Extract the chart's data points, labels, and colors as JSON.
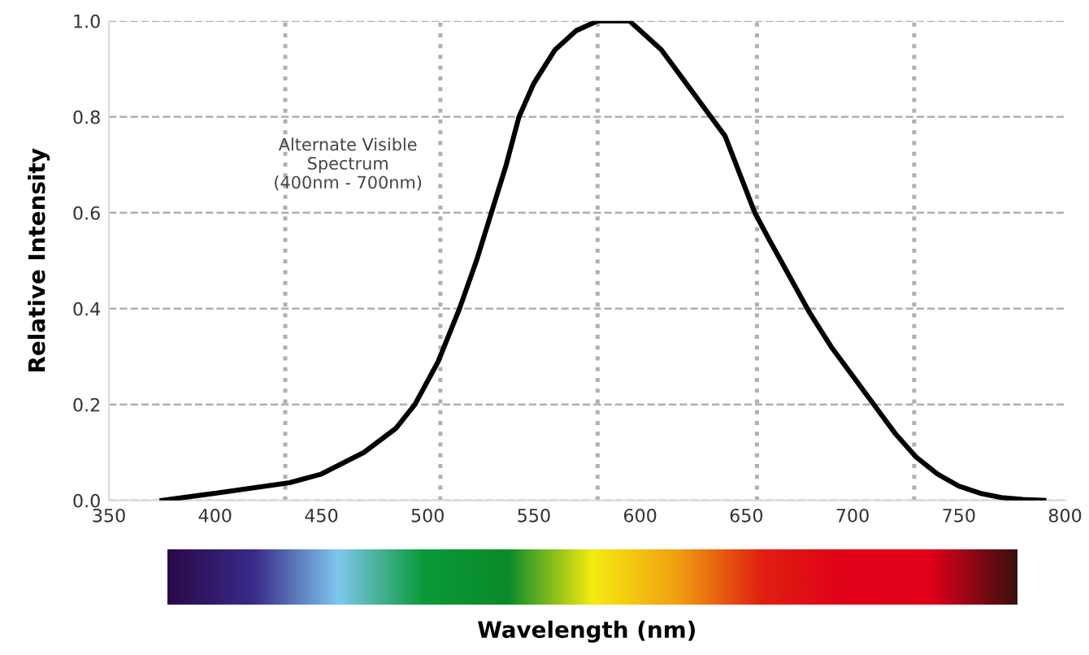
{
  "chart_data": {
    "type": "line",
    "xlabel": "Wavelength (nm)",
    "ylabel": "Relative Intensity",
    "annotations": [
      "Alternate Visible\nSpectrum\n(400nm - 700nm)"
    ],
    "x": [
      375,
      400,
      435,
      450,
      470,
      485,
      494,
      505,
      515,
      523,
      530,
      537,
      543,
      550,
      560,
      570,
      580,
      595,
      600,
      610,
      620,
      630,
      640,
      654,
      660,
      670,
      680,
      690,
      700,
      710,
      720,
      730,
      740,
      750,
      760,
      770,
      780,
      790
    ],
    "series": [
      {
        "color": "#000000",
        "values": [
          0,
          0.015,
          0.037,
          0.055,
          0.1,
          0.15,
          0.2,
          0.29,
          0.4,
          0.5,
          0.6,
          0.7,
          0.8,
          0.87,
          0.94,
          0.98,
          1.0,
          1.0,
          0.98,
          0.94,
          0.88,
          0.82,
          0.76,
          0.6,
          0.55,
          0.47,
          0.39,
          0.32,
          0.26,
          0.2,
          0.14,
          0.09,
          0.055,
          0.03,
          0.015,
          0.006,
          0.002,
          0
        ]
      }
    ],
    "xlim": [
      350,
      800
    ],
    "xticks": [
      350,
      400,
      450,
      500,
      550,
      600,
      650,
      700,
      750,
      800
    ],
    "ylim": [
      0,
      1.0
    ],
    "yticks": [
      {
        "value": 0,
        "label": "0.0"
      },
      {
        "value": 0.2,
        "label": "0.2"
      },
      {
        "value": 0.4,
        "label": "0.4"
      },
      {
        "value": 0.6,
        "label": "0.6"
      },
      {
        "value": 0.8,
        "label": "0.8"
      },
      {
        "value": 1.0,
        "label": "1.0"
      }
    ],
    "grid": "y",
    "line_style": "solid",
    "marker": "none",
    "ref_lines": [
      {
        "axis": "x",
        "value": 433,
        "color": "#b0b0b0",
        "line_style": "dotted"
      },
      {
        "axis": "x",
        "value": 506,
        "color": "#b0b0b0",
        "line_style": "dotted"
      },
      {
        "axis": "x",
        "value": 580,
        "color": "#b0b0b0",
        "line_style": "dotted"
      },
      {
        "axis": "x",
        "value": 655,
        "color": "#b0b0b0",
        "line_style": "dotted"
      },
      {
        "axis": "x",
        "value": 729,
        "color": "#b0b0b0",
        "line_style": "dotted"
      }
    ]
  }
}
